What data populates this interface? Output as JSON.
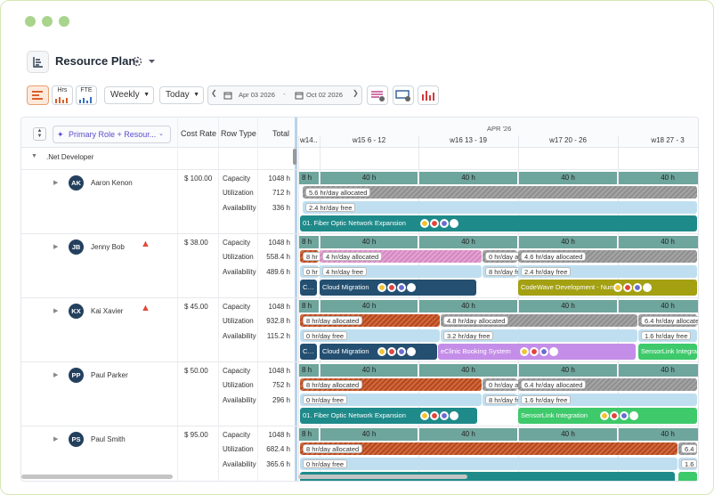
{
  "header": {
    "title": "Resource Plan"
  },
  "toolbar": {
    "hrs": "Hrs",
    "fte": "FTE",
    "view": "Weekly",
    "today": "Today",
    "date_from": "Apr 03 2026",
    "date_to": "Oct 02 2026"
  },
  "grid": {
    "group_by": "Primary Role + Resour...",
    "columns": [
      "Cost Rate",
      "Row Type",
      "Total"
    ],
    "month": "APR '26",
    "weeks": [
      "w14…",
      "w15 6 - 12",
      "w16 13 - 19",
      "w17 20 - 26",
      "w18 27 - 3"
    ],
    "group": ".Net Developer"
  },
  "resources": [
    {
      "initials": "AK",
      "name": "Aaron Kenon",
      "cost_rate": "$ 100.00",
      "warning": false,
      "rows": [
        {
          "type": "Capacity",
          "total": "1048 h"
        },
        {
          "type": "Utilization",
          "total": "712 h"
        },
        {
          "type": "Availability",
          "total": "336 h"
        }
      ],
      "capacity": [
        "8 h",
        "40 h",
        "40 h",
        "40 h",
        "40 h"
      ],
      "utilization": [
        "5.6 hr/day allocated"
      ],
      "availability": [
        "2.4 hr/day free"
      ],
      "projects": [
        "01. Fiber Optic Network Expansion"
      ]
    },
    {
      "initials": "JB",
      "name": "Jenny Bob",
      "cost_rate": "$ 38.00",
      "warning": true,
      "rows": [
        {
          "type": "Capacity",
          "total": "1048 h"
        },
        {
          "type": "Utilization",
          "total": "558.4 h"
        },
        {
          "type": "Availability",
          "total": "489.6 h"
        }
      ],
      "capacity": [
        "8 h",
        "40 h",
        "40 h",
        "40 h",
        "40 h"
      ],
      "utilization": [
        "8 hr",
        "4 hr/day allocated",
        "0 hr/day allocated",
        "4.6 hr/day allocated"
      ],
      "availability": [
        "0 hr",
        "4 hr/day free",
        "8 hr/day free",
        "2.4 hr/day free"
      ],
      "projects": [
        "C…",
        "Cloud Migration",
        "CodeWave Development - Num"
      ]
    },
    {
      "initials": "KX",
      "name": "Kai Xavier",
      "cost_rate": "$ 45.00",
      "warning": true,
      "rows": [
        {
          "type": "Capacity",
          "total": "1048 h"
        },
        {
          "type": "Utilization",
          "total": "932.8 h"
        },
        {
          "type": "Availability",
          "total": "115.2 h"
        }
      ],
      "capacity": [
        "8 h",
        "40 h",
        "40 h",
        "40 h",
        "40 h"
      ],
      "utilization": [
        "8 hr/day allocated",
        "4.8 hr/day allocated",
        "6.4 hr/day allocated"
      ],
      "availability": [
        "0 hr/day free",
        "3.2 hr/day free",
        "1.6 hr/day free"
      ],
      "projects": [
        "C…",
        "Cloud Migration",
        "eClinic Booking System",
        "SensorLink Integratio"
      ]
    },
    {
      "initials": "PP",
      "name": "Paul Parker",
      "cost_rate": "$ 50.00",
      "warning": false,
      "rows": [
        {
          "type": "Capacity",
          "total": "1048 h"
        },
        {
          "type": "Utilization",
          "total": "752 h"
        },
        {
          "type": "Availability",
          "total": "296 h"
        }
      ],
      "capacity": [
        "8 h",
        "40 h",
        "40 h",
        "40 h",
        "40 h"
      ],
      "utilization": [
        "8 hr/day allocated",
        "0 hr/day allocated",
        "6.4 hr/day allocated"
      ],
      "availability": [
        "0 hr/day free",
        "8 hr/day free",
        "1.6 hr/day free"
      ],
      "projects": [
        "01. Fiber Optic Network Expansion",
        "SensorLink Integration"
      ]
    },
    {
      "initials": "PS",
      "name": "Paul Smith",
      "cost_rate": "$ 95.00",
      "warning": false,
      "rows": [
        {
          "type": "Capacity",
          "total": "1048 h"
        },
        {
          "type": "Utilization",
          "total": "682.4 h"
        },
        {
          "type": "Availability",
          "total": "365.6 h"
        }
      ],
      "capacity": [
        "8 h",
        "40 h",
        "40 h",
        "40 h",
        "40 h"
      ],
      "utilization": [
        "8 hr/day allocated",
        "6.4"
      ],
      "availability": [
        "0 hr/day free",
        "1.6"
      ],
      "projects": []
    }
  ]
}
